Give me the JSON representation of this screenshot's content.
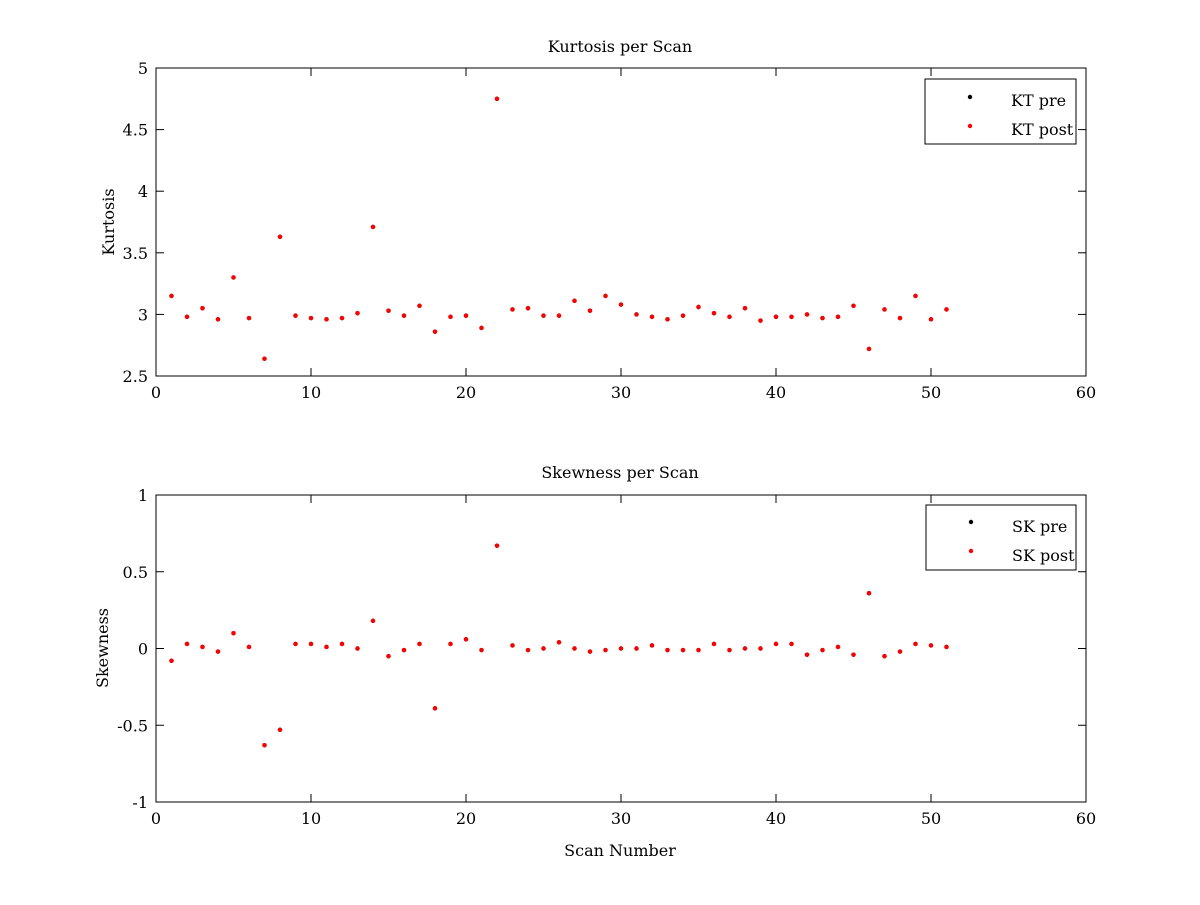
{
  "chart_data": [
    {
      "type": "scatter",
      "title": "Kurtosis per Scan",
      "xlabel": "",
      "ylabel": "Kurtosis",
      "xlim": [
        0,
        60
      ],
      "ylim": [
        2.5,
        5
      ],
      "xticks": [
        "0",
        "10",
        "20",
        "30",
        "40",
        "50",
        "60"
      ],
      "yticks": [
        "2.5",
        "3",
        "3.5",
        "4",
        "4.5",
        "5"
      ],
      "legend": "top-right",
      "series": [
        {
          "name": "KT pre",
          "color": "#000000",
          "x": [
            1,
            2,
            3,
            4,
            5,
            6,
            7,
            8,
            9,
            10,
            11,
            12,
            13,
            14,
            15,
            16,
            17,
            18,
            19,
            20,
            21,
            22,
            23,
            24,
            25,
            26,
            27,
            28,
            29,
            30,
            31,
            32,
            33,
            34,
            35,
            36,
            37,
            38,
            39,
            40,
            41,
            42,
            43,
            44,
            45,
            46,
            47,
            48,
            49,
            50,
            51
          ],
          "y": [
            3.15,
            2.98,
            3.05,
            2.96,
            3.3,
            2.97,
            2.64,
            3.63,
            2.99,
            2.97,
            2.96,
            2.97,
            3.01,
            3.71,
            3.03,
            2.99,
            3.07,
            2.86,
            2.98,
            2.99,
            2.89,
            4.75,
            3.04,
            3.05,
            2.99,
            2.99,
            3.11,
            3.03,
            3.15,
            3.08,
            3.0,
            2.98,
            2.96,
            2.99,
            3.06,
            3.01,
            2.98,
            3.05,
            2.95,
            2.98,
            2.98,
            3.0,
            2.97,
            2.98,
            3.07,
            2.72,
            3.04,
            2.97,
            3.15,
            2.96,
            3.04
          ]
        },
        {
          "name": "KT post",
          "color": "#ff0000",
          "x": [
            1,
            2,
            3,
            4,
            5,
            6,
            7,
            8,
            9,
            10,
            11,
            12,
            13,
            14,
            15,
            16,
            17,
            18,
            19,
            20,
            21,
            22,
            23,
            24,
            25,
            26,
            27,
            28,
            29,
            30,
            31,
            32,
            33,
            34,
            35,
            36,
            37,
            38,
            39,
            40,
            41,
            42,
            43,
            44,
            45,
            46,
            47,
            48,
            49,
            50,
            51
          ],
          "y": [
            3.15,
            2.98,
            3.05,
            2.96,
            3.3,
            2.97,
            2.64,
            3.63,
            2.99,
            2.97,
            2.96,
            2.97,
            3.01,
            3.71,
            3.03,
            2.99,
            3.07,
            2.86,
            2.98,
            2.99,
            2.89,
            4.75,
            3.04,
            3.05,
            2.99,
            2.99,
            3.11,
            3.03,
            3.15,
            3.08,
            3.0,
            2.98,
            2.96,
            2.99,
            3.06,
            3.01,
            2.98,
            3.05,
            2.95,
            2.98,
            2.98,
            3.0,
            2.97,
            2.98,
            3.07,
            2.72,
            3.04,
            2.97,
            3.15,
            2.96,
            3.04
          ]
        }
      ]
    },
    {
      "type": "scatter",
      "title": "Skewness per Scan",
      "xlabel": "Scan Number",
      "ylabel": "Skewness",
      "xlim": [
        0,
        60
      ],
      "ylim": [
        -1,
        1
      ],
      "xticks": [
        "0",
        "10",
        "20",
        "30",
        "40",
        "50",
        "60"
      ],
      "yticks": [
        "-1",
        "-0.5",
        "0",
        "0.5",
        "1"
      ],
      "legend": "top-right",
      "series": [
        {
          "name": "SK pre",
          "color": "#000000",
          "x": [
            1,
            2,
            3,
            4,
            5,
            6,
            7,
            8,
            9,
            10,
            11,
            12,
            13,
            14,
            15,
            16,
            17,
            18,
            19,
            20,
            21,
            22,
            23,
            24,
            25,
            26,
            27,
            28,
            29,
            30,
            31,
            32,
            33,
            34,
            35,
            36,
            37,
            38,
            39,
            40,
            41,
            42,
            43,
            44,
            45,
            46,
            47,
            48,
            49,
            50,
            51
          ],
          "y": [
            -0.08,
            0.03,
            0.01,
            -0.02,
            0.1,
            0.01,
            -0.63,
            -0.53,
            0.03,
            0.03,
            0.01,
            0.03,
            0.0,
            0.18,
            -0.05,
            -0.01,
            0.03,
            -0.39,
            0.03,
            0.06,
            -0.01,
            0.67,
            0.02,
            -0.01,
            0.0,
            0.04,
            0.0,
            -0.02,
            -0.01,
            0.0,
            0.0,
            0.02,
            -0.01,
            -0.01,
            -0.01,
            0.03,
            -0.01,
            0.0,
            0.0,
            0.03,
            0.03,
            -0.04,
            -0.01,
            0.01,
            -0.04,
            0.36,
            -0.05,
            -0.02,
            0.03,
            0.02,
            0.01
          ]
        },
        {
          "name": "SK post",
          "color": "#ff0000",
          "x": [
            1,
            2,
            3,
            4,
            5,
            6,
            7,
            8,
            9,
            10,
            11,
            12,
            13,
            14,
            15,
            16,
            17,
            18,
            19,
            20,
            21,
            22,
            23,
            24,
            25,
            26,
            27,
            28,
            29,
            30,
            31,
            32,
            33,
            34,
            35,
            36,
            37,
            38,
            39,
            40,
            41,
            42,
            43,
            44,
            45,
            46,
            47,
            48,
            49,
            50,
            51
          ],
          "y": [
            -0.08,
            0.03,
            0.01,
            -0.02,
            0.1,
            0.01,
            -0.63,
            -0.53,
            0.03,
            0.03,
            0.01,
            0.03,
            0.0,
            0.18,
            -0.05,
            -0.01,
            0.03,
            -0.39,
            0.03,
            0.06,
            -0.01,
            0.67,
            0.02,
            -0.01,
            0.0,
            0.04,
            0.0,
            -0.02,
            -0.01,
            0.0,
            0.0,
            0.02,
            -0.01,
            -0.01,
            -0.01,
            0.03,
            -0.01,
            0.0,
            0.0,
            0.03,
            0.03,
            -0.04,
            -0.01,
            0.01,
            -0.04,
            0.36,
            -0.05,
            -0.02,
            0.03,
            0.02,
            0.01
          ]
        }
      ]
    }
  ]
}
